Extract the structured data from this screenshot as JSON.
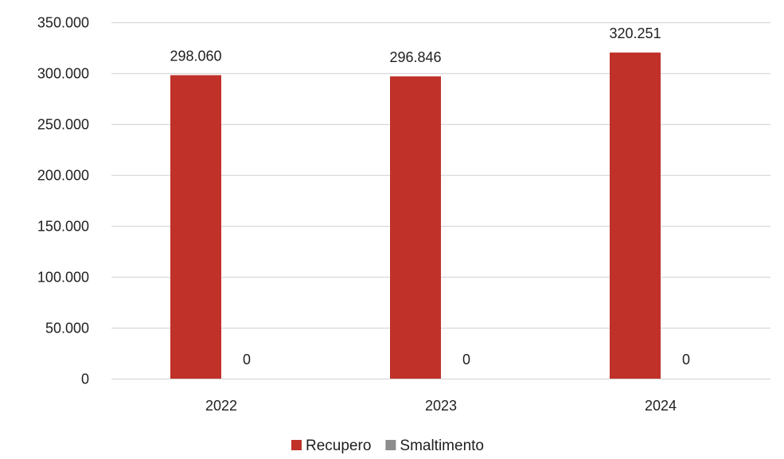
{
  "chart_data": {
    "type": "bar",
    "title": "",
    "xlabel": "",
    "ylabel": "",
    "categories": [
      "2022",
      "2023",
      "2024"
    ],
    "series": [
      {
        "name": "Recupero",
        "color": "#c0312a",
        "values": [
          298060,
          296846,
          320251
        ],
        "labels": [
          "298.060",
          "296.846",
          "320.251"
        ]
      },
      {
        "name": "Smaltimento",
        "color": "#8c8c8c",
        "values": [
          0,
          0,
          0
        ],
        "labels": [
          "0",
          "0",
          "0"
        ]
      }
    ],
    "ylim": [
      0,
      350000
    ],
    "yticks": [
      0,
      50000,
      100000,
      150000,
      200000,
      250000,
      300000,
      350000
    ],
    "ytick_labels": [
      "0",
      "50.000",
      "100.000",
      "150.000",
      "200.000",
      "250.000",
      "300.000",
      "350.000"
    ],
    "grid": true,
    "legend_position": "bottom-center",
    "gridline_color": "#d9d9d9"
  }
}
